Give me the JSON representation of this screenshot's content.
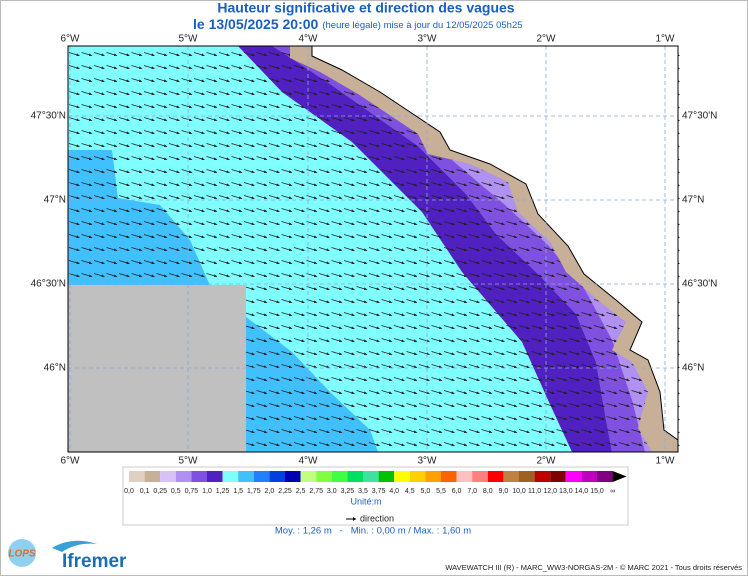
{
  "header": {
    "title": "Hauteur significative et direction des vagues",
    "date": "le 13/05/2025 20:00",
    "note": "(heure légale) mise à jour du 12/05/2025 05h25"
  },
  "map": {
    "lon_labels": [
      "6°W",
      "5°W",
      "4°W",
      "3°W",
      "2°W",
      "1°W"
    ],
    "lat_labels": [
      "47°30'N",
      "47°N",
      "46°30'N",
      "46°N"
    ]
  },
  "legend": {
    "labels": [
      "0,0",
      "0,1",
      "0,25",
      "0,5",
      "0,75",
      "1,0",
      "1,25",
      "1,5",
      "1,75",
      "2,0",
      "2,25",
      "2,5",
      "2,75",
      "3,0",
      "3,25",
      "3,5",
      "3,75",
      "4,0",
      "4,5",
      "5,0",
      "5,5",
      "6,0",
      "7,0",
      "8,0",
      "9,0",
      "10,0",
      "11,0",
      "12,0",
      "13,0",
      "14,0",
      "15,0",
      "∞"
    ],
    "colors": [
      "#e0d0c0",
      "#c8b098",
      "#d8c0f8",
      "#b090f0",
      "#8050e0",
      "#5020c0",
      "#80ffff",
      "#40c0ff",
      "#2080ff",
      "#0040e0",
      "#0000b0",
      "#c0ff80",
      "#80ff40",
      "#40ff40",
      "#00e060",
      "#40e0a0",
      "#00c000",
      "#ffff00",
      "#ffd000",
      "#ffa000",
      "#ff6000",
      "#ffc0c0",
      "#ff8080",
      "#ff0000",
      "#c08040",
      "#a06020",
      "#c00000",
      "#800000",
      "#ff00ff",
      "#c000c0",
      "#800080"
    ],
    "unit": "Unité:m",
    "direction": "direction"
  },
  "stats": "Moy. : 1,26 m   -   Min. : 0,00 m / Max. : 1,60 m",
  "logos": {
    "lops": "LOPS",
    "ifremer": "Ifremer"
  },
  "footer": "WAVEWATCH III (R) - MARC_WW3-NORGAS-2M - © MARC 2021 - Tous droits réservés"
}
